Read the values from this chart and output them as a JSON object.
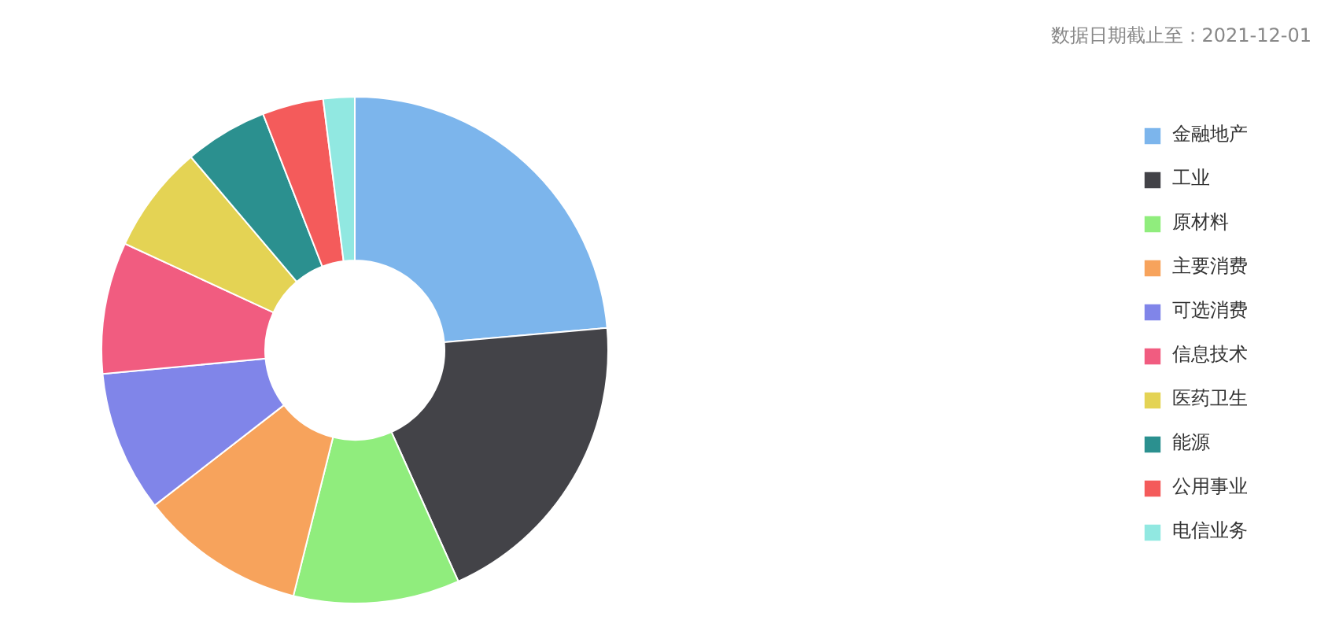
{
  "chart_data": {
    "type": "donut",
    "categories": [
      "金融地产",
      "工业",
      "原材料",
      "主要消费",
      "可选消费",
      "信息技术",
      "医药卫生",
      "能源",
      "公用事业",
      "电信业务"
    ],
    "values": [
      23.6,
      19.7,
      10.6,
      10.6,
      9.0,
      8.4,
      6.9,
      5.3,
      3.9,
      2.0
    ],
    "colors": [
      "#7cb5ec",
      "#434348",
      "#90ed7d",
      "#f7a35c",
      "#8085e9",
      "#f15c80",
      "#e4d354",
      "#2b908f",
      "#f45b5b",
      "#91e8e1"
    ],
    "annotations": [
      "数据日期截止至：2021-12-01"
    ],
    "legend": "right"
  }
}
